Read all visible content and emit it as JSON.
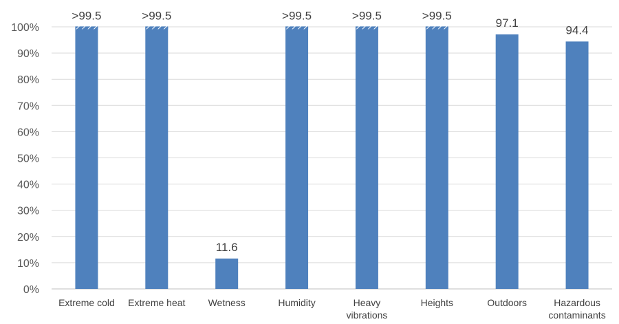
{
  "chart_data": {
    "type": "bar",
    "title": "",
    "xlabel": "",
    "ylabel": "",
    "ylim": [
      0,
      100
    ],
    "y_ticks": [
      "0%",
      "10%",
      "20%",
      "30%",
      "40%",
      "50%",
      "60%",
      "70%",
      "80%",
      "90%",
      "100%"
    ],
    "grid": "horizontal",
    "categories": [
      [
        "Extreme cold"
      ],
      [
        "Extreme heat"
      ],
      [
        "Wetness"
      ],
      [
        "Humidity"
      ],
      [
        "Heavy",
        "vibrations"
      ],
      [
        "Heights"
      ],
      [
        "Outdoors"
      ],
      [
        "Hazardous",
        "contaminants"
      ]
    ],
    "values": [
      99.9,
      99.9,
      11.6,
      99.9,
      99.9,
      99.9,
      97.1,
      94.4
    ],
    "data_labels": [
      ">99.5",
      ">99.5",
      "11.6",
      ">99.5",
      ">99.5",
      ">99.5",
      "97.1",
      "94.4"
    ],
    "truncated_top": [
      true,
      true,
      false,
      true,
      true,
      true,
      false,
      false
    ],
    "colors": {
      "bar": "#4f81bd",
      "grid": "#d9d9d9",
      "axis": "#bfbfbf",
      "hatch": "#ffffff"
    }
  }
}
